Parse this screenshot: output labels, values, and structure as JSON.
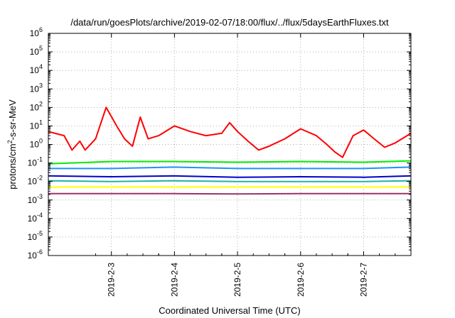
{
  "chart_data": {
    "type": "line",
    "title": "/data/run/goesPlots/archive/2019-02-07/18:00/flux/../flux/5daysEarthFluxes.txt",
    "xlabel": "Coordinated Universal Time (UTC)",
    "ylabel_parts": {
      "pre": "protons/cm",
      "sup": "2",
      "post": "-s-sr-MeV"
    },
    "yscale": "log",
    "ylim_exponents": [
      -6,
      6
    ],
    "y_ticks": [
      {
        "exp": "-6"
      },
      {
        "exp": "-5"
      },
      {
        "exp": "-4"
      },
      {
        "exp": "-3"
      },
      {
        "exp": "-2"
      },
      {
        "exp": "-1"
      },
      {
        "exp": "0"
      },
      {
        "exp": "1"
      },
      {
        "exp": "2"
      },
      {
        "exp": "3"
      },
      {
        "exp": "4"
      },
      {
        "exp": "5"
      },
      {
        "exp": "6"
      }
    ],
    "y_tick_base": "10",
    "xlim": [
      "2019-02-02 00:00",
      "2019-02-07 18:00"
    ],
    "x_ticks": [
      "2019-2-3",
      "2019-2-4",
      "2019-2-5",
      "2019-2-6",
      "2019-2-7"
    ],
    "grid": true,
    "series": [
      {
        "color": "#ff0000",
        "x": [
          "2019-02-02 00:00",
          "2019-02-02 06:00",
          "2019-02-02 09:00",
          "2019-02-02 12:00",
          "2019-02-02 14:00",
          "2019-02-02 18:00",
          "2019-02-02 22:00",
          "2019-02-03 02:00",
          "2019-02-03 05:00",
          "2019-02-03 08:00",
          "2019-02-03 11:00",
          "2019-02-03 14:00",
          "2019-02-03 18:00",
          "2019-02-04 00:00",
          "2019-02-04 06:00",
          "2019-02-04 12:00",
          "2019-02-04 18:00",
          "2019-02-04 21:00",
          "2019-02-05 00:00",
          "2019-02-05 04:00",
          "2019-02-05 08:00",
          "2019-02-05 12:00",
          "2019-02-05 18:00",
          "2019-02-06 00:00",
          "2019-02-06 06:00",
          "2019-02-06 10:00",
          "2019-02-06 13:00",
          "2019-02-06 16:00",
          "2019-02-06 20:00",
          "2019-02-07 00:00",
          "2019-02-07 04:00",
          "2019-02-07 08:00",
          "2019-02-07 12:00",
          "2019-02-07 18:00"
        ],
        "y": [
          5,
          3,
          0.5,
          1.5,
          0.5,
          2,
          100,
          10,
          2,
          0.8,
          30,
          2,
          3,
          10,
          5,
          3,
          4,
          15,
          5,
          1.5,
          0.5,
          0.8,
          2,
          7,
          3,
          1,
          0.4,
          0.2,
          3,
          6,
          2,
          0.7,
          1.2,
          4
        ]
      },
      {
        "color": "#00ee00",
        "x": [
          "2019-02-02 00:00",
          "2019-02-03 00:00",
          "2019-02-04 00:00",
          "2019-02-05 00:00",
          "2019-02-06 00:00",
          "2019-02-07 00:00",
          "2019-02-07 18:00"
        ],
        "y": [
          0.09,
          0.12,
          0.12,
          0.11,
          0.12,
          0.11,
          0.13
        ]
      },
      {
        "color": "#1e90ff",
        "x": [
          "2019-02-02 00:00",
          "2019-02-03 00:00",
          "2019-02-04 00:00",
          "2019-02-05 00:00",
          "2019-02-06 00:00",
          "2019-02-07 00:00",
          "2019-02-07 18:00"
        ],
        "y": [
          0.05,
          0.05,
          0.06,
          0.05,
          0.05,
          0.05,
          0.06
        ]
      },
      {
        "color": "#0000cc",
        "x": [
          "2019-02-02 00:00",
          "2019-02-03 00:00",
          "2019-02-04 00:00",
          "2019-02-05 00:00",
          "2019-02-06 00:00",
          "2019-02-07 00:00",
          "2019-02-07 18:00"
        ],
        "y": [
          0.02,
          0.018,
          0.02,
          0.017,
          0.018,
          0.017,
          0.02
        ]
      },
      {
        "color": "#20b2aa",
        "x": [
          "2019-02-02 00:00",
          "2019-02-03 00:00",
          "2019-02-04 00:00",
          "2019-02-05 00:00",
          "2019-02-06 00:00",
          "2019-02-07 00:00",
          "2019-02-07 18:00"
        ],
        "y": [
          0.011,
          0.01,
          0.011,
          0.01,
          0.01,
          0.01,
          0.011
        ]
      },
      {
        "color": "#ffff00",
        "x": [
          "2019-02-02 00:00",
          "2019-02-03 00:00",
          "2019-02-04 00:00",
          "2019-02-05 00:00",
          "2019-02-06 00:00",
          "2019-02-07 00:00",
          "2019-02-07 18:00"
        ],
        "y": [
          0.005,
          0.005,
          0.005,
          0.005,
          0.005,
          0.005,
          0.005
        ]
      },
      {
        "color": "#993366",
        "x": [
          "2019-02-02 00:00",
          "2019-02-03 00:00",
          "2019-02-04 00:00",
          "2019-02-05 00:00",
          "2019-02-06 00:00",
          "2019-02-07 00:00",
          "2019-02-07 18:00"
        ],
        "y": [
          0.0022,
          0.0022,
          0.0022,
          0.0021,
          0.0022,
          0.0022,
          0.0022
        ]
      }
    ]
  }
}
